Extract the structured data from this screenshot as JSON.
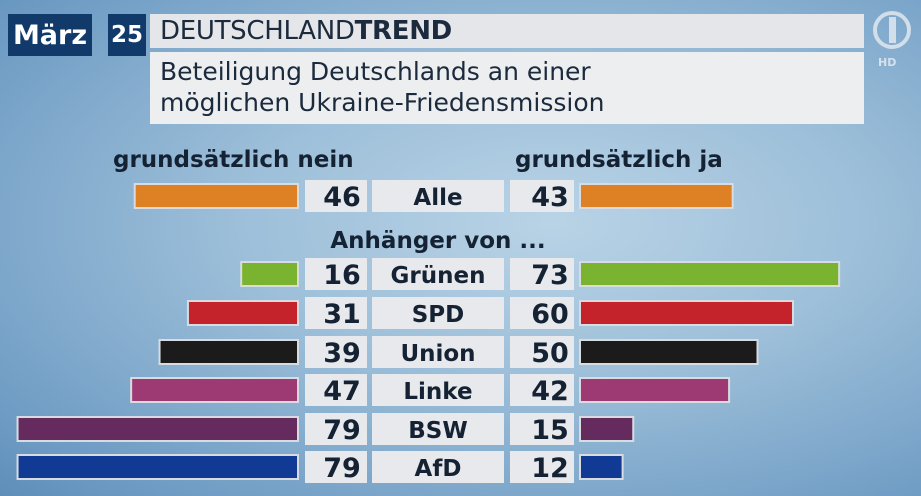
{
  "header": {
    "month": "März",
    "year": "25",
    "brand_regular": "DEUTSCHLAND",
    "brand_bold": "TREND",
    "subtitle_line1": "Beteiligung Deutschlands an einer",
    "subtitle_line2": "möglichen Ukraine-Friedensmission",
    "channel_badge": "HD"
  },
  "chart_data": {
    "type": "bar",
    "left_header": "grundsätzlich nein",
    "right_header": "grundsätzlich ja",
    "group_label": "Anhänger von ...",
    "categories": [
      "Alle",
      "Grünen",
      "SPD",
      "Union",
      "Linke",
      "BSW",
      "AfD"
    ],
    "series": [
      {
        "name": "grundsätzlich nein",
        "values": [
          46,
          16,
          31,
          39,
          47,
          79,
          79
        ]
      },
      {
        "name": "grundsätzlich ja",
        "values": [
          43,
          73,
          60,
          50,
          42,
          15,
          12
        ]
      }
    ],
    "colors": [
      "#dd8124",
      "#79b32f",
      "#c4232b",
      "#1b1b1b",
      "#9e3a73",
      "#652a5e",
      "#103a93"
    ]
  }
}
